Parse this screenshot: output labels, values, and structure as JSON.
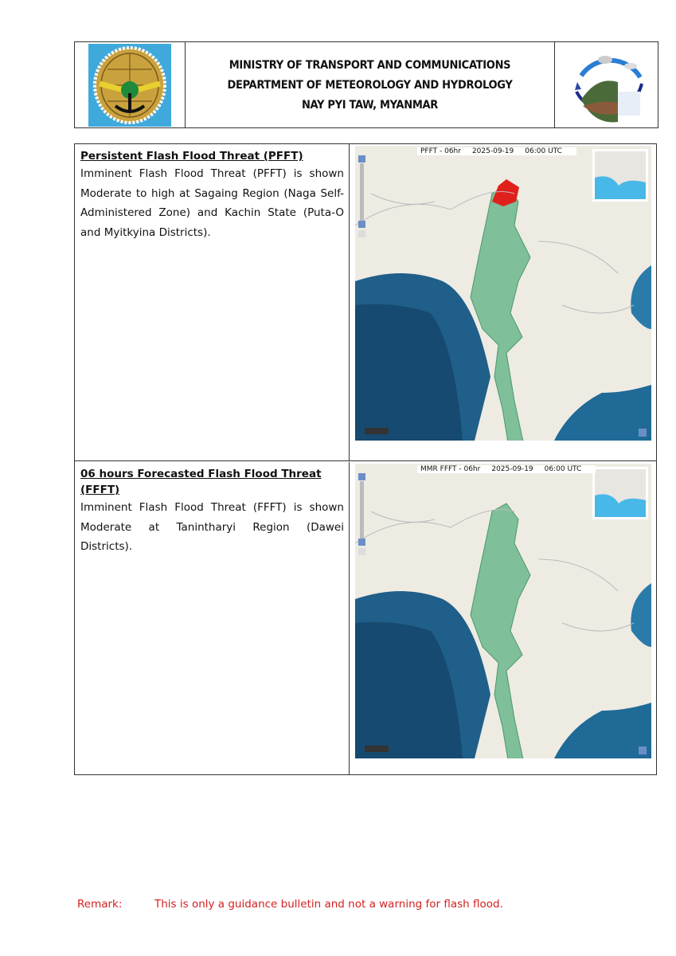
{
  "header": {
    "line1": "MINISTRY OF TRANSPORT AND COMMUNICATIONS",
    "line2": "DEPARTMENT OF METEOROLOGY AND HYDROLOGY",
    "line3": "NAY PYI TAW, MYANMAR",
    "left_logo": "ministry-emblem",
    "right_logo": "hydrological-cycle-logo"
  },
  "sections": [
    {
      "title": "Persistent Flash Flood Threat (PFFT)",
      "body": "Imminent Flash Flood Threat (PFFT) is shown Moderate to high at Sagaing Region (Naga Self-Administered Zone) and Kachin State (Puta-O and Myitkyina Districts).",
      "map": {
        "product": "PFFT - 06hr",
        "date": "2025-09-19",
        "time": "06:00 UTC",
        "threat_color": "#e0201a"
      }
    },
    {
      "title": "06 hours Forecasted Flash Flood Threat (FFFT)",
      "body": "Imminent Flash Flood Threat (FFFT) is shown Moderate at Tanintharyi Region (Dawei Districts).",
      "map": {
        "product": "MMR FFFT - 06hr",
        "date": "2025-09-19",
        "time": "06:00 UTC"
      }
    }
  ],
  "remark": {
    "label": "Remark:",
    "text": "This is only a guidance bulletin and not a warning for flash flood.",
    "color": "#d42020"
  }
}
